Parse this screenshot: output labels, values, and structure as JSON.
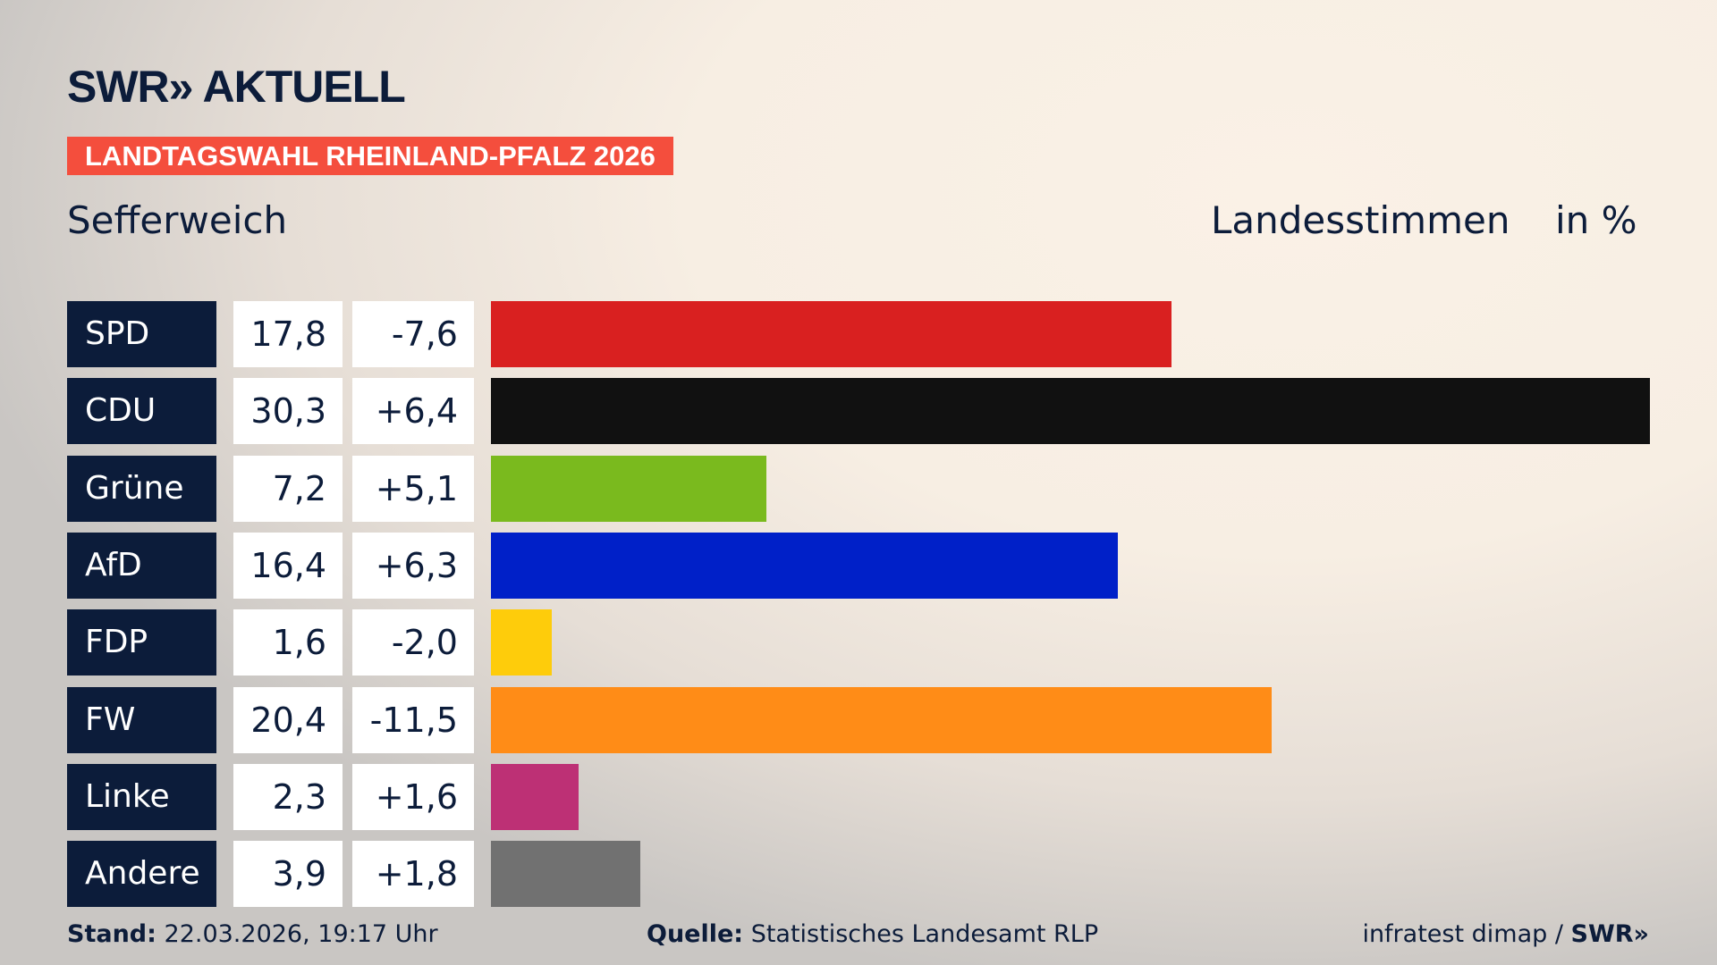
{
  "logo": "SWR» AKTUELL",
  "banner": "LANDTAGSWAHL RHEINLAND-PFALZ 2026",
  "place": "Sefferweich",
  "header_type": "Landesstimmen",
  "header_unit": "in %",
  "chart_data": {
    "type": "bar",
    "orientation": "horizontal",
    "categories": [
      "SPD",
      "CDU",
      "Grüne",
      "AfD",
      "FDP",
      "FW",
      "Linke",
      "Andere"
    ],
    "values_display": [
      "17,8",
      "30,3",
      "7,2",
      "16,4",
      "1,6",
      "20,4",
      "2,3",
      "3,9"
    ],
    "values": [
      17.8,
      30.3,
      7.2,
      16.4,
      1.6,
      20.4,
      2.3,
      3.9
    ],
    "changes_display": [
      "-7,6",
      "+6,4",
      "+5,1",
      "+6,3",
      "-2,0",
      "-11,5",
      "+1,6",
      "+1,8"
    ],
    "colors": [
      "#d92020",
      "#111111",
      "#7aba1e",
      "#0020c8",
      "#fecc0b",
      "#ff8c17",
      "#bd3075",
      "#717171"
    ]
  },
  "footer": {
    "stand_label": "Stand:",
    "stand_value": "22.03.2026, 19:17 Uhr",
    "source_label": "Quelle:",
    "source_value": "Statistisches Landesamt RLP",
    "credit": "infratest dimap / ",
    "credit_brand": "SWR»"
  }
}
